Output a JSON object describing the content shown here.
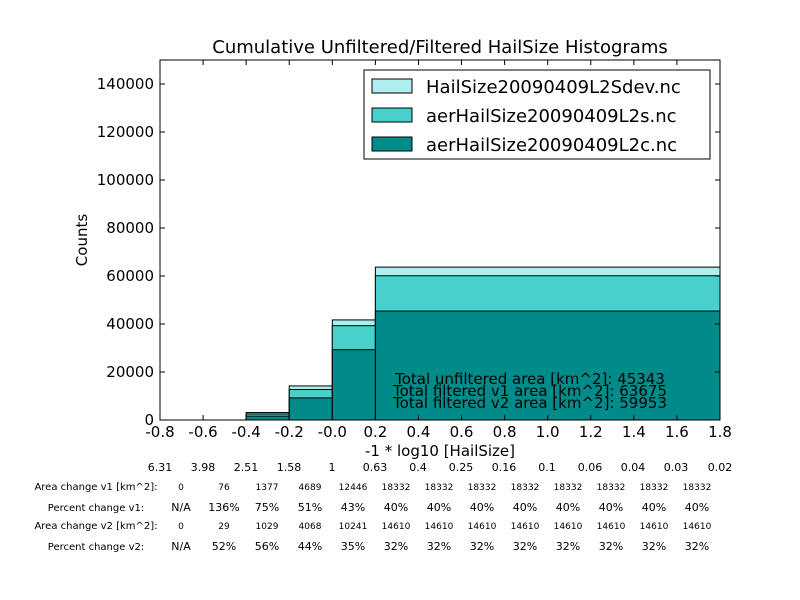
{
  "chart_data": {
    "type": "histogram",
    "title": "Cumulative Unfiltered/Filtered HailSize Histograms",
    "xlabel": "-1 * log10 [HailSize]",
    "ylabel": "Counts",
    "xlim": [
      -0.8,
      1.8
    ],
    "ylim": [
      0,
      150000
    ],
    "x_ticks": [
      "-0.8",
      "-0.6",
      "-0.4",
      "-0.2",
      "-0.0",
      "0.2",
      "0.4",
      "0.6",
      "0.8",
      "1.0",
      "1.2",
      "1.4",
      "1.6",
      "1.8"
    ],
    "x_tick_values": [
      -0.8,
      -0.6,
      -0.4,
      -0.2,
      0.0,
      0.2,
      0.4,
      0.6,
      0.8,
      1.0,
      1.2,
      1.4,
      1.6,
      1.8
    ],
    "y_ticks": [
      "0",
      "20000",
      "40000",
      "60000",
      "80000",
      "100000",
      "120000",
      "140000"
    ],
    "y_tick_values": [
      0,
      20000,
      40000,
      60000,
      80000,
      100000,
      120000,
      140000
    ],
    "bin_edges": [
      -0.8,
      -0.6,
      -0.4,
      -0.2,
      0.0,
      0.2,
      1.8
    ],
    "series": [
      {
        "name": "HailSize20090409L2Sdev.nc",
        "color": "#aeeeee",
        "values": [
          0,
          0,
          3100,
          14200,
          41700,
          63700
        ]
      },
      {
        "name": "aerHailSize20090409L2s.nc",
        "color": "#48d1cc",
        "values": [
          0,
          0,
          2500,
          12700,
          39300,
          60100
        ]
      },
      {
        "name": "aerHailSize20090409L2c.nc",
        "color": "#008b8b",
        "values": [
          0,
          0,
          1600,
          9200,
          29300,
          45400
        ]
      }
    ],
    "legend_position": "top-right",
    "annotations": [
      "Total unfiltered area [km^2]: 45343",
      "Total filtered v1 area [km^2]: 63675",
      "Total filtered v2 area [km^2]: 59953"
    ]
  },
  "table": {
    "hail_sizes": [
      "6.31",
      "3.98",
      "2.51",
      "1.58",
      "1",
      "0.63",
      "0.4",
      "0.25",
      "0.16",
      "0.1",
      "0.06",
      "0.04",
      "0.03",
      "0.02"
    ],
    "rows": [
      {
        "label": "Area change v1 [km^2]:",
        "values": [
          "0",
          "76",
          "1377",
          "4689",
          "12446",
          "18332",
          "18332",
          "18332",
          "18332",
          "18332",
          "18332",
          "18332",
          "18332"
        ]
      },
      {
        "label": "Percent change v1:",
        "values": [
          "N/A",
          "136%",
          "75%",
          "51%",
          "43%",
          "40%",
          "40%",
          "40%",
          "40%",
          "40%",
          "40%",
          "40%",
          "40%"
        ]
      },
      {
        "label": "Area change v2 [km^2]:",
        "values": [
          "0",
          "29",
          "1029",
          "4068",
          "10241",
          "14610",
          "14610",
          "14610",
          "14610",
          "14610",
          "14610",
          "14610",
          "14610"
        ]
      },
      {
        "label": "Percent change v2:",
        "values": [
          "N/A",
          "52%",
          "56%",
          "44%",
          "35%",
          "32%",
          "32%",
          "32%",
          "32%",
          "32%",
          "32%",
          "32%",
          "32%"
        ]
      }
    ]
  }
}
